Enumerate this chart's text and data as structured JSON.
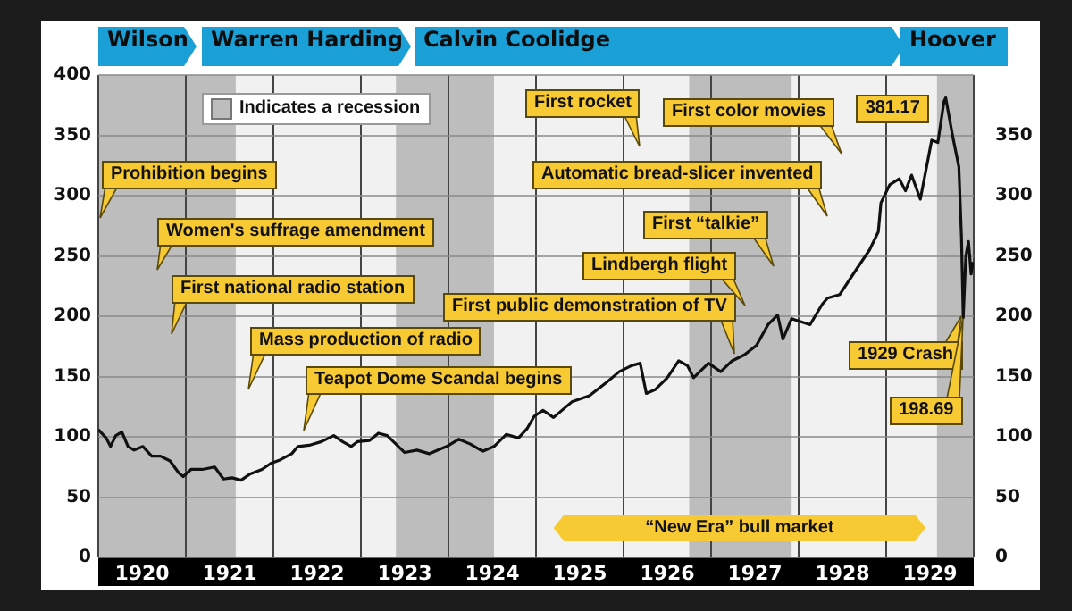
{
  "chart_data": {
    "type": "line",
    "x": [
      1920.0,
      1920.09,
      1920.14,
      1920.2,
      1920.27,
      1920.34,
      1920.41,
      1920.51,
      1920.61,
      1920.71,
      1920.82,
      1920.92,
      1920.97,
      1921.06,
      1921.19,
      1921.33,
      1921.43,
      1921.53,
      1921.63,
      1921.73,
      1921.87,
      1921.97,
      1922.08,
      1922.21,
      1922.28,
      1922.41,
      1922.55,
      1922.69,
      1922.79,
      1922.89,
      1922.96,
      1923.1,
      1923.2,
      1923.3,
      1923.4,
      1923.5,
      1923.64,
      1923.78,
      1923.88,
      1923.98,
      1924.12,
      1924.25,
      1924.39,
      1924.52,
      1924.66,
      1924.8,
      1924.9,
      1924.98,
      1925.08,
      1925.2,
      1925.41,
      1925.61,
      1925.82,
      1925.95,
      1926.09,
      1926.19,
      1926.26,
      1926.36,
      1926.5,
      1926.63,
      1926.73,
      1926.8,
      1926.97,
      1927.11,
      1927.24,
      1927.38,
      1927.52,
      1927.65,
      1927.76,
      1927.82,
      1927.92,
      1928.13,
      1928.27,
      1928.33,
      1928.47,
      1928.67,
      1928.81,
      1928.91,
      1928.94,
      1929.04,
      1929.15,
      1929.22,
      1929.29,
      1929.39,
      1929.52,
      1929.59,
      1929.66,
      1929.68,
      1929.76,
      1929.83,
      1929.86,
      1929.88,
      1929.91,
      1929.94,
      1929.97,
      1929.99
    ],
    "series": [
      {
        "color": "#111111",
        "values": [
          106,
          99,
          92,
          101,
          104,
          92,
          89,
          92,
          84,
          84,
          80,
          70,
          67,
          73,
          73,
          75,
          65,
          66,
          64,
          69,
          73,
          78,
          81,
          86,
          92,
          93,
          96,
          101,
          96,
          92,
          96,
          97,
          103,
          101,
          94,
          87,
          89,
          86,
          89,
          92,
          98,
          94,
          88,
          92,
          102,
          99,
          107,
          117,
          122,
          116,
          129,
          134,
          146,
          154,
          159,
          161,
          136,
          139,
          149,
          163,
          159,
          149,
          161,
          154,
          163,
          168,
          176,
          193,
          201,
          181,
          198,
          193,
          210,
          215,
          218,
          240,
          255,
          270,
          294,
          309,
          314,
          304,
          317,
          297,
          346,
          344,
          378,
          381.17,
          349,
          324,
          265,
          198.69,
          250,
          262,
          235,
          245
        ]
      }
    ],
    "xlim": [
      1920,
      1930
    ],
    "xticks": [
      {
        "value": 1920,
        "label": null
      },
      {
        "value": 1920.5,
        "label": "1920"
      },
      {
        "value": 1921,
        "label": null
      },
      {
        "value": 1921.5,
        "label": "1921"
      },
      {
        "value": 1922,
        "label": null
      },
      {
        "value": 1922.5,
        "label": "1922"
      },
      {
        "value": 1923,
        "label": null
      },
      {
        "value": 1923.5,
        "label": "1923"
      },
      {
        "value": 1924,
        "label": null
      },
      {
        "value": 1924.5,
        "label": "1924"
      },
      {
        "value": 1925,
        "label": null
      },
      {
        "value": 1925.5,
        "label": "1925"
      },
      {
        "value": 1926,
        "label": null
      },
      {
        "value": 1926.5,
        "label": "1926"
      },
      {
        "value": 1927,
        "label": null
      },
      {
        "value": 1927.5,
        "label": "1927"
      },
      {
        "value": 1928,
        "label": null
      },
      {
        "value": 1928.5,
        "label": "1928"
      },
      {
        "value": 1929,
        "label": null
      },
      {
        "value": 1929.5,
        "label": "1929"
      },
      {
        "value": 1930,
        "label": null
      }
    ],
    "ylim": [
      0,
      400
    ],
    "yticks": [
      0,
      50,
      100,
      150,
      200,
      250,
      300,
      350,
      400
    ],
    "y2lim": [
      0,
      400
    ],
    "y2ticks": [
      0,
      50,
      100,
      150,
      200,
      250,
      300,
      350
    ],
    "grid": true,
    "bands": [
      {
        "axis": "x",
        "from": 1920.0,
        "to": 1921.57,
        "color": "#bdbdbd"
      },
      {
        "axis": "x",
        "from": 1923.4,
        "to": 1924.52,
        "color": "#bdbdbd"
      },
      {
        "axis": "x",
        "from": 1926.75,
        "to": 1927.92,
        "color": "#bdbdbd"
      },
      {
        "axis": "x",
        "from": 1929.58,
        "to": 1930.0,
        "color": "#bdbdbd"
      },
      {
        "axis": "x",
        "from": 1925.2,
        "to": 1929.45,
        "label": "“New Era” bull market",
        "color": "#f7c933"
      }
    ],
    "annotations": [
      "Wilson",
      "Warren Harding",
      "Calvin Coolidge",
      "Hoover",
      "Indicates a recession",
      "Prohibition begins",
      "Women's suffrage amendment",
      "First national radio station",
      "Mass production of radio",
      "Teapot Dome Scandal begins",
      "First public demonstration of TV",
      "Lindbergh flight",
      "First “talkie”",
      "Automatic bread-slicer invented",
      "First rocket",
      "First color movies",
      {
        "text": "381.17",
        "x": 1929.68,
        "y": 381.17
      },
      {
        "text": "1929 Crash",
        "x": 1929.86,
        "y": 200
      },
      {
        "text": "198.69",
        "x": 1929.88,
        "y": 198.69
      }
    ]
  }
}
